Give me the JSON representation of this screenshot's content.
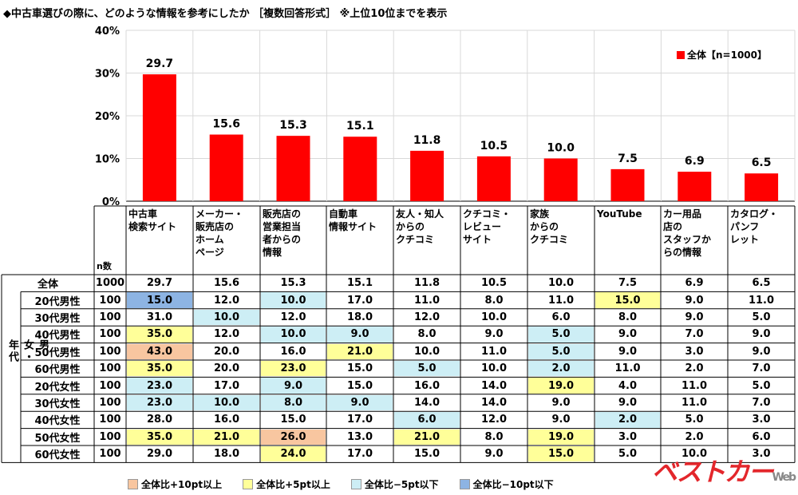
{
  "title": "◆中古車選びの際に、どのような情報を参考にしたか ［複数回答形式］ ※上位10位までを表示",
  "legend_top": "全体【n=1000】",
  "n_header": "n数",
  "group_label": "男女・年代",
  "watermark": "ベストカー Web",
  "colors": {
    "bar": "#ff0000",
    "orange": "#f8c6a0",
    "yellow": "#ffff99",
    "lightblue": "#cdeef5",
    "blue": "#8db4e3"
  },
  "bottom_legend": [
    {
      "label": "全体比+10pt以上",
      "color": "#f8c6a0"
    },
    {
      "label": "全体比+5pt以上",
      "color": "#ffff99"
    },
    {
      "label": "全体比−5pt以下",
      "color": "#cdeef5"
    },
    {
      "label": "全体比−10pt以下",
      "color": "#8db4e3"
    }
  ],
  "chart_data": {
    "type": "bar",
    "title": "◆中古車選びの際に、どのような情報を参考にしたか ［複数回答形式］ ※上位10位までを表示",
    "categories": [
      "中古車\n検索サイト",
      "メーカー・\n販売店の\nホーム\nページ",
      "販売店の\n営業担当\n者からの\n情報",
      "自動車\n情報サイト",
      "友人・知人\nからの\nクチコミ",
      "クチコミ・\nレビュー\nサイト",
      "家族\nからの\nクチコミ",
      "YouTube",
      "カー用品\n店の\nスタッフか\nらの情報",
      "カタログ・\nパンフ\nレット"
    ],
    "series": [
      {
        "name": "全体【n=1000】",
        "values": [
          29.7,
          15.6,
          15.3,
          15.1,
          11.8,
          10.5,
          10.0,
          7.5,
          6.9,
          6.5
        ]
      }
    ],
    "value_labels": [
      "29.7",
      "15.6",
      "15.3",
      "15.1",
      "11.8",
      "10.5",
      "10.0",
      "7.5",
      "6.9",
      "6.5"
    ],
    "ylim": [
      0,
      40
    ],
    "yticks": [
      "0%",
      "10%",
      "20%",
      "30%",
      "40%"
    ],
    "legend": "top-right",
    "grid": true
  },
  "table": {
    "rows": [
      {
        "label": "全体",
        "n": "1000",
        "values": [
          "29.7",
          "15.6",
          "15.3",
          "15.1",
          "11.8",
          "10.5",
          "10.0",
          "7.5",
          "6.9",
          "6.5"
        ],
        "hl": [
          "",
          "",
          "",
          "",
          "",
          "",
          "",
          "",
          "",
          ""
        ]
      },
      {
        "label": "20代男性",
        "n": "100",
        "values": [
          "15.0",
          "12.0",
          "10.0",
          "17.0",
          "11.0",
          "8.0",
          "11.0",
          "15.0",
          "9.0",
          "11.0"
        ],
        "hl": [
          "b",
          "",
          "l",
          "",
          "",
          "",
          "",
          "y",
          "",
          ""
        ]
      },
      {
        "label": "30代男性",
        "n": "100",
        "values": [
          "31.0",
          "10.0",
          "12.0",
          "18.0",
          "12.0",
          "10.0",
          "6.0",
          "8.0",
          "9.0",
          "5.0"
        ],
        "hl": [
          "",
          "l",
          "",
          "",
          "",
          "",
          "",
          "",
          "",
          ""
        ]
      },
      {
        "label": "40代男性",
        "n": "100",
        "values": [
          "35.0",
          "12.0",
          "10.0",
          "9.0",
          "8.0",
          "9.0",
          "5.0",
          "9.0",
          "7.0",
          "9.0"
        ],
        "hl": [
          "y",
          "",
          "l",
          "l",
          "",
          "",
          "l",
          "",
          "",
          ""
        ]
      },
      {
        "label": "50代男性",
        "n": "100",
        "values": [
          "43.0",
          "20.0",
          "16.0",
          "21.0",
          "10.0",
          "11.0",
          "5.0",
          "9.0",
          "3.0",
          "9.0"
        ],
        "hl": [
          "o",
          "",
          "",
          "y",
          "",
          "",
          "l",
          "",
          "",
          ""
        ]
      },
      {
        "label": "60代男性",
        "n": "100",
        "values": [
          "35.0",
          "20.0",
          "23.0",
          "15.0",
          "5.0",
          "10.0",
          "2.0",
          "11.0",
          "2.0",
          "7.0"
        ],
        "hl": [
          "y",
          "",
          "y",
          "",
          "l",
          "",
          "l",
          "",
          "",
          ""
        ]
      },
      {
        "label": "20代女性",
        "n": "100",
        "values": [
          "23.0",
          "17.0",
          "9.0",
          "15.0",
          "16.0",
          "14.0",
          "19.0",
          "4.0",
          "11.0",
          "5.0"
        ],
        "hl": [
          "l",
          "",
          "l",
          "",
          "",
          "",
          "y",
          "",
          "",
          ""
        ]
      },
      {
        "label": "30代女性",
        "n": "100",
        "values": [
          "23.0",
          "10.0",
          "8.0",
          "9.0",
          "14.0",
          "14.0",
          "9.0",
          "9.0",
          "11.0",
          "7.0"
        ],
        "hl": [
          "l",
          "l",
          "l",
          "l",
          "",
          "",
          "",
          "",
          "",
          ""
        ]
      },
      {
        "label": "40代女性",
        "n": "100",
        "values": [
          "28.0",
          "16.0",
          "15.0",
          "17.0",
          "6.0",
          "12.0",
          "9.0",
          "2.0",
          "5.0",
          "3.0"
        ],
        "hl": [
          "",
          "",
          "",
          "",
          "l",
          "",
          "",
          "l",
          "",
          ""
        ]
      },
      {
        "label": "50代女性",
        "n": "100",
        "values": [
          "35.0",
          "21.0",
          "26.0",
          "13.0",
          "21.0",
          "8.0",
          "19.0",
          "3.0",
          "2.0",
          "6.0"
        ],
        "hl": [
          "y",
          "y",
          "o",
          "",
          "y",
          "",
          "y",
          "",
          "",
          ""
        ]
      },
      {
        "label": "60代女性",
        "n": "100",
        "values": [
          "29.0",
          "18.0",
          "24.0",
          "17.0",
          "15.0",
          "9.0",
          "15.0",
          "5.0",
          "10.0",
          "3.0"
        ],
        "hl": [
          "",
          "",
          "y",
          "",
          "",
          "",
          "y",
          "",
          "",
          ""
        ]
      }
    ]
  }
}
